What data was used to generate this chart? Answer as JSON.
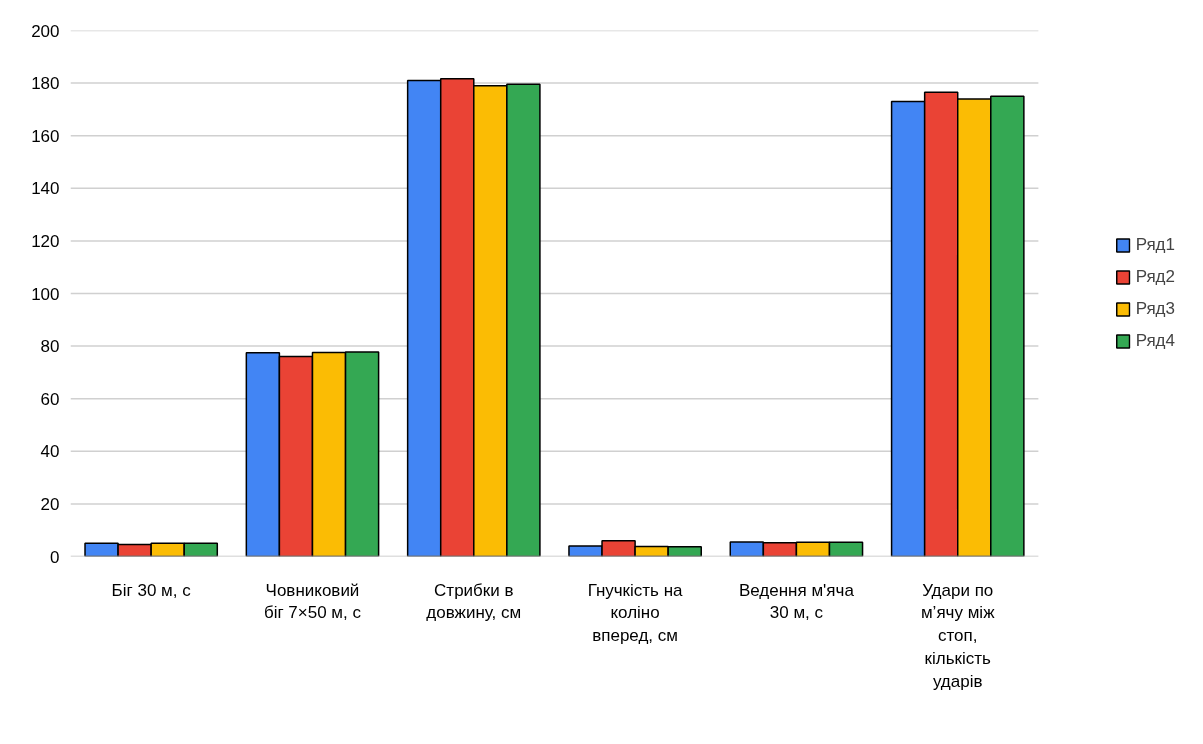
{
  "chart_data": {
    "type": "bar",
    "categories": [
      "Біг 30 м, с",
      "Човниковий біг 7×50 м, с",
      "Стрибки в довжину, см",
      "Гнучкість на коліно вперед, см",
      "Ведення м'яча 30 м, с",
      "Удари по м’ячу між стоп, кількість ударів"
    ],
    "series": [
      {
        "name": "Ряд1",
        "color": "#4285f4",
        "values": [
          5,
          77.5,
          181,
          4,
          5.5,
          173
        ]
      },
      {
        "name": "Ряд2",
        "color": "#ea4335",
        "values": [
          4.6,
          76,
          181.7,
          6,
          5.2,
          176.5
        ]
      },
      {
        "name": "Ряд3",
        "color": "#fbbc04",
        "values": [
          5,
          77.6,
          179,
          3.8,
          5.4,
          174
        ]
      },
      {
        "name": "Ряд4",
        "color": "#34a853",
        "values": [
          5,
          77.8,
          179.6,
          3.7,
          5.4,
          175
        ]
      }
    ],
    "ylim": [
      0,
      200
    ],
    "yticks": [
      0,
      20,
      40,
      60,
      80,
      100,
      120,
      140,
      160,
      180,
      200
    ],
    "grid": "y",
    "legend": "right"
  }
}
